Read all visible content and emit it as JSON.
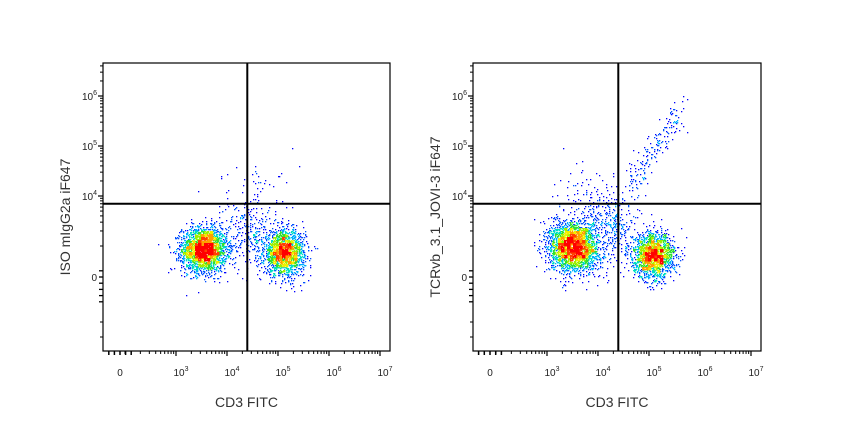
{
  "chart_data": [
    {
      "type": "scatter",
      "subtype": "flow-cytometry-density-dot-plot",
      "xlabel": "CD3 FITC",
      "ylabel": "ISO mIgG2a iF647",
      "x_scale": "biexponential",
      "y_scale": "biexponential",
      "xlim": [
        -300,
        10000000
      ],
      "ylim": [
        -3000,
        4000000
      ],
      "x_ticks": [
        {
          "v": 0,
          "base": "0",
          "exp": ""
        },
        {
          "v": 1000,
          "base": "10",
          "exp": "3"
        },
        {
          "v": 10000,
          "base": "10",
          "exp": "4"
        },
        {
          "v": 100000,
          "base": "10",
          "exp": "5"
        },
        {
          "v": 1000000,
          "base": "10",
          "exp": "6"
        },
        {
          "v": 10000000,
          "base": "10",
          "exp": "7"
        }
      ],
      "y_ticks": [
        {
          "v": 0,
          "base": "0",
          "exp": ""
        },
        {
          "v": 10000,
          "base": "10",
          "exp": "4"
        },
        {
          "v": 100000,
          "base": "10",
          "exp": "5"
        },
        {
          "v": 1000000,
          "base": "10",
          "exp": "6"
        }
      ],
      "gates": {
        "x": 25000,
        "y": 7000
      },
      "populations": [
        {
          "name": "CD3- population",
          "x_center": 3500,
          "y_center": 900,
          "x_sd_decades": 0.22,
          "y_sd_decades": 0.22,
          "n": 2600
        },
        {
          "name": "CD3+ population",
          "x_center": 130000,
          "y_center": 800,
          "x_sd_decades": 0.2,
          "y_sd_decades": 0.22,
          "n": 1900
        },
        {
          "name": "bridge",
          "x_center": 25000,
          "y_center": 2000,
          "x_sd_decades": 0.25,
          "y_sd_decades": 0.35,
          "n": 250
        },
        {
          "name": "sparse upper",
          "x_center": 40000,
          "y_center": 15000,
          "x_sd_decades": 0.4,
          "y_sd_decades": 0.3,
          "n": 40
        }
      ]
    },
    {
      "type": "scatter",
      "subtype": "flow-cytometry-density-dot-plot",
      "xlabel": "CD3 FITC",
      "ylabel": "TCRvb_3.1_JOVI-3 iF647",
      "x_scale": "biexponential",
      "y_scale": "biexponential",
      "xlim": [
        -300,
        10000000
      ],
      "ylim": [
        -3000,
        4000000
      ],
      "x_ticks": [
        {
          "v": 0,
          "base": "0",
          "exp": ""
        },
        {
          "v": 1000,
          "base": "10",
          "exp": "3"
        },
        {
          "v": 10000,
          "base": "10",
          "exp": "4"
        },
        {
          "v": 100000,
          "base": "10",
          "exp": "5"
        },
        {
          "v": 1000000,
          "base": "10",
          "exp": "6"
        },
        {
          "v": 10000000,
          "base": "10",
          "exp": "7"
        }
      ],
      "y_ticks": [
        {
          "v": 0,
          "base": "0",
          "exp": ""
        },
        {
          "v": 10000,
          "base": "10",
          "exp": "4"
        },
        {
          "v": 100000,
          "base": "10",
          "exp": "5"
        },
        {
          "v": 1000000,
          "base": "10",
          "exp": "6"
        }
      ],
      "gates": {
        "x": 25000,
        "y": 7000
      },
      "populations": [
        {
          "name": "CD3- population",
          "x_center": 3300,
          "y_center": 1000,
          "x_sd_decades": 0.24,
          "y_sd_decades": 0.25,
          "n": 2800
        },
        {
          "name": "CD3+ TCRvb3.1- population",
          "x_center": 120000,
          "y_center": 700,
          "x_sd_decades": 0.2,
          "y_sd_decades": 0.22,
          "n": 1800
        },
        {
          "name": "bridge",
          "x_center": 20000,
          "y_center": 2500,
          "x_sd_decades": 0.25,
          "y_sd_decades": 0.35,
          "n": 300
        },
        {
          "name": "sparse upper-left",
          "x_center": 6000,
          "y_center": 12000,
          "x_sd_decades": 0.3,
          "y_sd_decades": 0.3,
          "n": 70
        },
        {
          "name": "CD3+ TCRvb3.1+ diagonal",
          "x_start": 40000,
          "y_start": 15000,
          "x_end": 400000,
          "y_end": 500000,
          "spread_decades": 0.1,
          "n": 180
        }
      ]
    }
  ]
}
